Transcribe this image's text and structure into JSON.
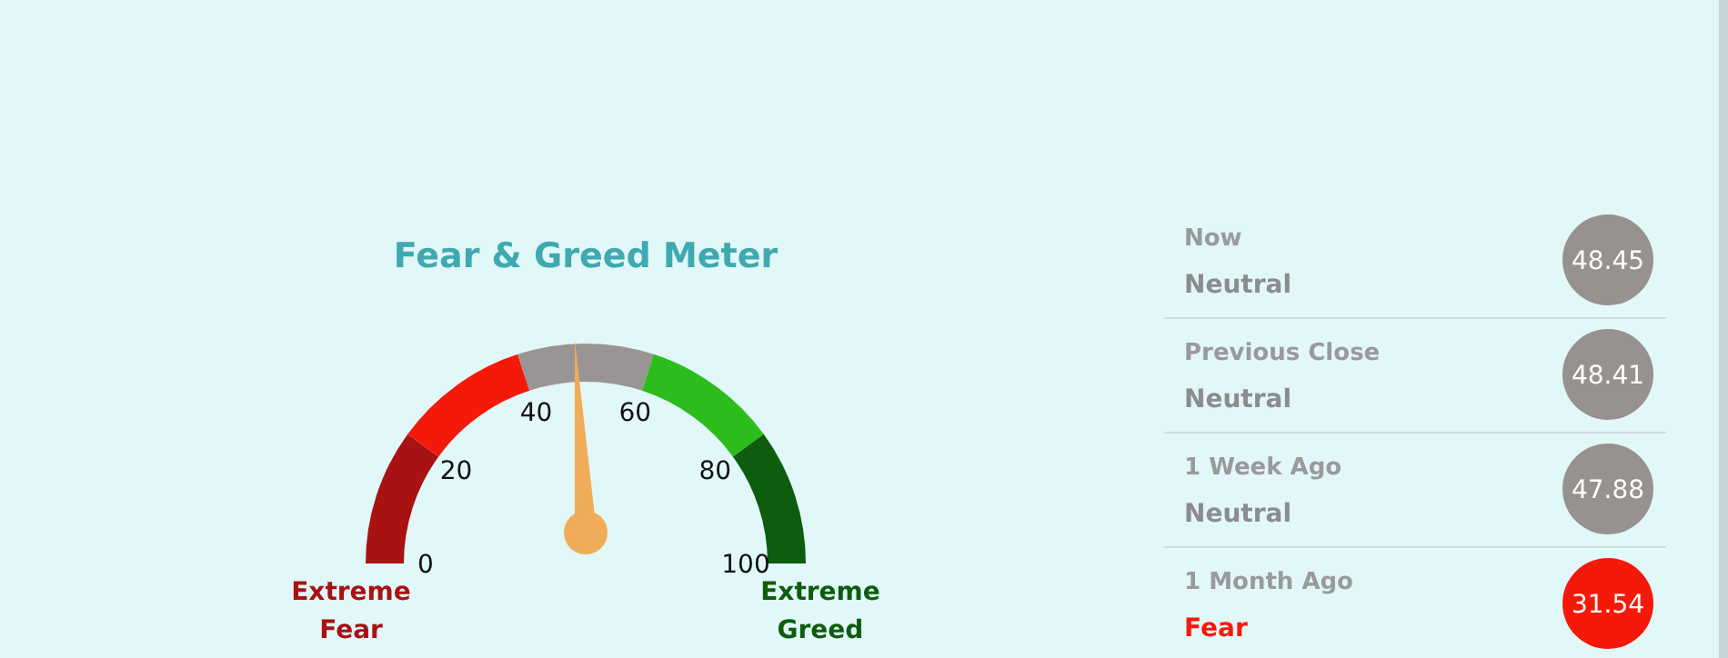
{
  "chart_data": [
    {
      "type": "other",
      "title": "Fear & Greed Meter",
      "categories": [
        "Extreme Fear",
        null,
        null,
        null,
        "Extreme Greed"
      ],
      "colors": [
        "#a81212",
        "#f5190a",
        "#999594",
        "#2cbd1c",
        "#0e5c0e"
      ],
      "annotations": [
        "0",
        "20",
        "40",
        "60",
        "80",
        "100"
      ]
    },
    {
      "type": "other",
      "categories": [
        "Now",
        "Previous Close",
        "1 Week Ago",
        "1 Month Ago"
      ],
      "values": [
        48.45,
        48.41,
        47.88,
        31.54
      ],
      "colors": [
        "#97918f",
        "#97918f",
        "#97918f",
        "#f5190a"
      ],
      "data_labels": true,
      "annotations": [
        "Neutral",
        "Neutral",
        "Neutral",
        "Fear"
      ]
    }
  ]
}
